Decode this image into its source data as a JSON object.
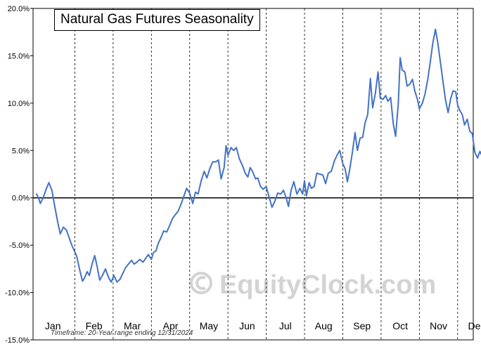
{
  "chart_data": {
    "type": "line",
    "title": "Natural Gas Futures Seasonality",
    "xlabel": "",
    "ylabel": "",
    "ylim": [
      -15,
      20
    ],
    "y_ticks": [
      20,
      15,
      10,
      5,
      0,
      -5,
      -10,
      -15
    ],
    "y_tick_labels": [
      "20.0%",
      "15.0%",
      "10.0%",
      "5.0%",
      "0.0%",
      "-5.0%",
      "-10.0%",
      "-15.0%"
    ],
    "months": [
      "Jan",
      "Feb",
      "Mar",
      "Apr",
      "May",
      "Jun",
      "Jul",
      "Aug",
      "Sep",
      "Oct",
      "Nov",
      "Dec"
    ],
    "grid": "dashed vertical at month boundaries, solid horizontal at 0%",
    "series": [
      {
        "color": "#4472c4",
        "points": [
          [
            0.0,
            0.4
          ],
          [
            0.05,
            0.0
          ],
          [
            0.1,
            -0.6
          ],
          [
            0.18,
            0.1
          ],
          [
            0.25,
            0.9
          ],
          [
            0.32,
            1.6
          ],
          [
            0.4,
            0.8
          ],
          [
            0.48,
            -1.0
          ],
          [
            0.55,
            -2.5
          ],
          [
            0.62,
            -3.8
          ],
          [
            0.7,
            -3.1
          ],
          [
            0.78,
            -3.4
          ],
          [
            0.85,
            -4.2
          ],
          [
            0.92,
            -5.0
          ],
          [
            1.0,
            -5.7
          ],
          [
            1.05,
            -6.2
          ],
          [
            1.12,
            -7.5
          ],
          [
            1.2,
            -8.8
          ],
          [
            1.25,
            -8.5
          ],
          [
            1.32,
            -7.8
          ],
          [
            1.38,
            -8.2
          ],
          [
            1.45,
            -7.0
          ],
          [
            1.52,
            -6.1
          ],
          [
            1.58,
            -7.2
          ],
          [
            1.65,
            -8.7
          ],
          [
            1.72,
            -8.2
          ],
          [
            1.8,
            -7.5
          ],
          [
            1.88,
            -8.4
          ],
          [
            1.95,
            -8.9
          ],
          [
            2.02,
            -8.2
          ],
          [
            2.1,
            -8.9
          ],
          [
            2.18,
            -8.6
          ],
          [
            2.25,
            -8.0
          ],
          [
            2.32,
            -7.4
          ],
          [
            2.4,
            -7.0
          ],
          [
            2.48,
            -6.6
          ],
          [
            2.55,
            -7.0
          ],
          [
            2.62,
            -6.8
          ],
          [
            2.7,
            -6.5
          ],
          [
            2.78,
            -6.8
          ],
          [
            2.85,
            -6.4
          ],
          [
            2.92,
            -6.0
          ],
          [
            3.0,
            -6.5
          ],
          [
            3.05,
            -5.8
          ],
          [
            3.12,
            -5.6
          ],
          [
            3.18,
            -4.8
          ],
          [
            3.25,
            -4.2
          ],
          [
            3.32,
            -3.5
          ],
          [
            3.4,
            -3.6
          ],
          [
            3.48,
            -2.9
          ],
          [
            3.55,
            -2.2
          ],
          [
            3.62,
            -1.8
          ],
          [
            3.7,
            -1.4
          ],
          [
            3.78,
            -0.6
          ],
          [
            3.85,
            0.2
          ],
          [
            3.92,
            1.0
          ],
          [
            4.0,
            0.5
          ],
          [
            4.08,
            -0.6
          ],
          [
            4.15,
            0.6
          ],
          [
            4.22,
            0.4
          ],
          [
            4.3,
            1.8
          ],
          [
            4.38,
            2.8
          ],
          [
            4.45,
            2.1
          ],
          [
            4.52,
            3.0
          ],
          [
            4.6,
            3.8
          ],
          [
            4.68,
            3.8
          ],
          [
            4.75,
            4.0
          ],
          [
            4.82,
            2.0
          ],
          [
            4.9,
            3.2
          ],
          [
            4.95,
            5.5
          ],
          [
            5.0,
            4.5
          ],
          [
            5.08,
            5.3
          ],
          [
            5.15,
            5.0
          ],
          [
            5.22,
            5.3
          ],
          [
            5.3,
            4.1
          ],
          [
            5.38,
            3.4
          ],
          [
            5.45,
            2.6
          ],
          [
            5.52,
            2.2
          ],
          [
            5.58,
            3.2
          ],
          [
            5.65,
            2.7
          ],
          [
            5.72,
            2.0
          ],
          [
            5.78,
            2.1
          ],
          [
            5.85,
            1.2
          ],
          [
            5.92,
            0.9
          ],
          [
            6.0,
            1.2
          ],
          [
            6.08,
            0.0
          ],
          [
            6.15,
            -1.0
          ],
          [
            6.22,
            -0.4
          ],
          [
            6.3,
            0.5
          ],
          [
            6.38,
            0.4
          ],
          [
            6.45,
            0.8
          ],
          [
            6.52,
            0.0
          ],
          [
            6.58,
            -0.9
          ],
          [
            6.65,
            0.8
          ],
          [
            6.72,
            1.7
          ],
          [
            6.8,
            0.4
          ],
          [
            6.88,
            1.0
          ],
          [
            6.95,
            0.4
          ],
          [
            7.0,
            1.8
          ],
          [
            7.05,
            0.2
          ],
          [
            7.12,
            1.6
          ],
          [
            7.18,
            1.0
          ],
          [
            7.25,
            1.2
          ],
          [
            7.32,
            2.6
          ],
          [
            7.4,
            2.5
          ],
          [
            7.48,
            2.4
          ],
          [
            7.55,
            1.5
          ],
          [
            7.62,
            2.6
          ],
          [
            7.7,
            2.8
          ],
          [
            7.78,
            3.9
          ],
          [
            7.85,
            4.5
          ],
          [
            7.92,
            5.0
          ],
          [
            8.0,
            3.6
          ],
          [
            8.06,
            3.1
          ],
          [
            8.12,
            1.7
          ],
          [
            8.18,
            3.0
          ],
          [
            8.25,
            4.8
          ],
          [
            8.32,
            6.9
          ],
          [
            8.38,
            5.0
          ],
          [
            8.45,
            6.3
          ],
          [
            8.52,
            6.4
          ],
          [
            8.58,
            7.9
          ],
          [
            8.65,
            8.8
          ],
          [
            8.72,
            12.6
          ],
          [
            8.78,
            9.5
          ],
          [
            8.85,
            11.0
          ],
          [
            8.92,
            13.3
          ],
          [
            8.98,
            10.5
          ],
          [
            9.05,
            10.4
          ],
          [
            9.12,
            10.8
          ],
          [
            9.18,
            10.2
          ],
          [
            9.25,
            10.6
          ],
          [
            9.32,
            7.8
          ],
          [
            9.38,
            6.5
          ],
          [
            9.45,
            10.0
          ],
          [
            9.5,
            14.8
          ],
          [
            9.55,
            13.5
          ],
          [
            9.62,
            13.3
          ],
          [
            9.68,
            11.8
          ],
          [
            9.75,
            12.0
          ],
          [
            9.82,
            12.5
          ],
          [
            9.88,
            11.3
          ],
          [
            9.95,
            10.4
          ],
          [
            10.0,
            9.4
          ],
          [
            10.08,
            10.0
          ],
          [
            10.15,
            11.0
          ],
          [
            10.22,
            12.5
          ],
          [
            10.28,
            14.2
          ],
          [
            10.35,
            16.3
          ],
          [
            10.42,
            17.8
          ],
          [
            10.48,
            16.4
          ],
          [
            10.55,
            14.3
          ],
          [
            10.62,
            12.2
          ],
          [
            10.68,
            10.4
          ],
          [
            10.75,
            9.0
          ],
          [
            10.82,
            10.5
          ],
          [
            10.88,
            11.3
          ],
          [
            10.95,
            11.2
          ],
          [
            11.0,
            9.8
          ],
          [
            11.06,
            9.2
          ],
          [
            11.12,
            8.8
          ],
          [
            11.18,
            7.7
          ],
          [
            11.25,
            8.3
          ],
          [
            11.32,
            7.0
          ],
          [
            11.38,
            6.8
          ],
          [
            11.45,
            4.8
          ],
          [
            11.52,
            4.2
          ],
          [
            11.58,
            4.9
          ],
          [
            11.65,
            4.3
          ],
          [
            11.72,
            3.4
          ],
          [
            11.78,
            3.1
          ]
        ]
      }
    ]
  },
  "timeframe_text": "Timeframe: 20-Year range ending 12/31/2024",
  "watermark": {
    "text": "EquityClock.com",
    "icon": "copyright-icon"
  }
}
